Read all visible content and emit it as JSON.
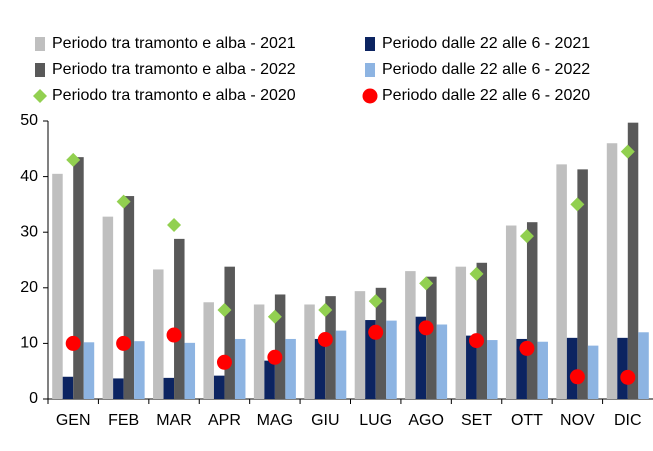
{
  "chart_data": {
    "type": "bar",
    "categories": [
      "GEN",
      "FEB",
      "MAR",
      "APR",
      "MAG",
      "GIU",
      "LUG",
      "AGO",
      "SET",
      "OTT",
      "NOV",
      "DIC"
    ],
    "series": [
      {
        "name": "Periodo tra tramonto e alba - 2021",
        "color": "#bfbfbf",
        "values": [
          40.5,
          32.8,
          23.3,
          17.4,
          17,
          17,
          19.4,
          23,
          23.8,
          31.2,
          42.2,
          46
        ]
      },
      {
        "name": "Periodo dalle 22 alle 6 - 2021",
        "color": "#0c2461",
        "values": [
          4,
          3.7,
          3.8,
          4.2,
          6.9,
          10.8,
          14.2,
          14.8,
          11.4,
          10.8,
          11,
          11
        ]
      },
      {
        "name": "Periodo tra tramonto e alba - 2022",
        "color": "#595959",
        "values": [
          43.5,
          36.5,
          28.8,
          23.8,
          18.8,
          18.5,
          20,
          22,
          24.5,
          31.8,
          41.3,
          49.7
        ]
      },
      {
        "name": "Periodo dalle 22 alle 6 - 2022",
        "color": "#8db4e2",
        "values": [
          10.2,
          10.4,
          10.1,
          10.8,
          10.8,
          12.3,
          14.1,
          13.4,
          10.6,
          10.3,
          9.6,
          12
        ]
      },
      {
        "name": "Periodo tra tramonto e alba - 2020",
        "color": "#92d050",
        "marker": "diamond",
        "values": [
          43,
          35.5,
          31.3,
          16,
          14.8,
          16,
          17.6,
          20.8,
          22.5,
          29.3,
          35,
          44.5
        ]
      },
      {
        "name": "Periodo dalle 22 alle 6 - 2020",
        "color": "#ff0000",
        "marker": "circle",
        "values": [
          10,
          10,
          11.5,
          6.6,
          7.5,
          10.7,
          12,
          12.8,
          10.5,
          9.1,
          4,
          3.9
        ]
      }
    ],
    "ylim": [
      0,
      50
    ],
    "yticks": [
      0,
      10,
      20,
      30,
      40,
      50
    ],
    "grid": false,
    "legend": "top"
  }
}
